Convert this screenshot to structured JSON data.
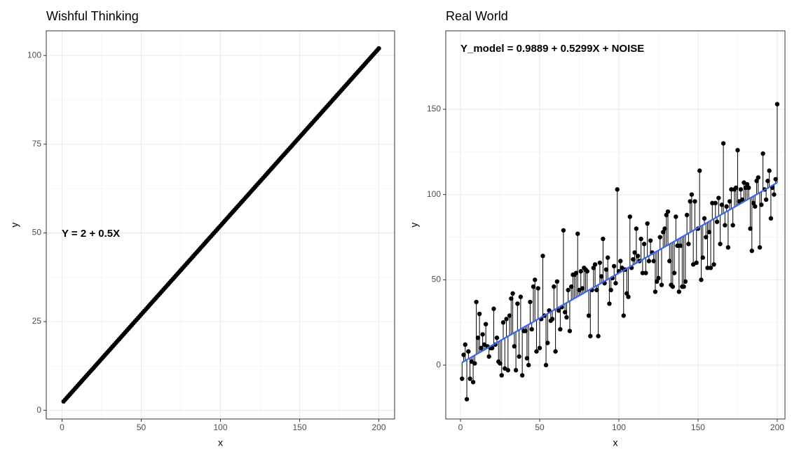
{
  "chart_data": [
    {
      "type": "scatter",
      "title": "Wishful Thinking",
      "x_label": "x",
      "y_label": "y",
      "annotation": "Y = 2 + 0.5X",
      "color": "#000000",
      "grid": true,
      "xlim": [
        -9.95,
        209.95
      ],
      "ylim": [
        -2.45,
        106.95
      ],
      "xticks": [
        0,
        50,
        100,
        150,
        200
      ],
      "yticks": [
        0,
        25,
        50,
        75,
        100
      ],
      "x": [
        1,
        2,
        3,
        4,
        5,
        6,
        7,
        8,
        9,
        10,
        11,
        12,
        13,
        14,
        15,
        16,
        17,
        18,
        19,
        20,
        21,
        22,
        23,
        24,
        25,
        26,
        27,
        28,
        29,
        30,
        31,
        32,
        33,
        34,
        35,
        36,
        37,
        38,
        39,
        40,
        41,
        42,
        43,
        44,
        45,
        46,
        47,
        48,
        49,
        50,
        51,
        52,
        53,
        54,
        55,
        56,
        57,
        58,
        59,
        60,
        61,
        62,
        63,
        64,
        65,
        66,
        67,
        68,
        69,
        70,
        71,
        72,
        73,
        74,
        75,
        76,
        77,
        78,
        79,
        80,
        81,
        82,
        83,
        84,
        85,
        86,
        87,
        88,
        89,
        90,
        91,
        92,
        93,
        94,
        95,
        96,
        97,
        98,
        99,
        100,
        101,
        102,
        103,
        104,
        105,
        106,
        107,
        108,
        109,
        110,
        111,
        112,
        113,
        114,
        115,
        116,
        117,
        118,
        119,
        120,
        121,
        122,
        123,
        124,
        125,
        126,
        127,
        128,
        129,
        130,
        131,
        132,
        133,
        134,
        135,
        136,
        137,
        138,
        139,
        140,
        141,
        142,
        143,
        144,
        145,
        146,
        147,
        148,
        149,
        150,
        151,
        152,
        153,
        154,
        155,
        156,
        157,
        158,
        159,
        160,
        161,
        162,
        163,
        164,
        165,
        166,
        167,
        168,
        169,
        170,
        171,
        172,
        173,
        174,
        175,
        176,
        177,
        178,
        179,
        180,
        181,
        182,
        183,
        184,
        185,
        186,
        187,
        188,
        189,
        190,
        191,
        192,
        193,
        194,
        195,
        196,
        197,
        198,
        199,
        200
      ],
      "values": [
        2.5,
        3,
        3.5,
        4,
        4.5,
        5,
        5.5,
        6,
        6.5,
        7,
        7.5,
        8,
        8.5,
        9,
        9.5,
        10,
        10.5,
        11,
        11.5,
        12,
        12.5,
        13,
        13.5,
        14,
        14.5,
        15,
        15.5,
        16,
        16.5,
        17,
        17.5,
        18,
        18.5,
        19,
        19.5,
        20,
        20.5,
        21,
        21.5,
        22,
        22.5,
        23,
        23.5,
        24,
        24.5,
        25,
        25.5,
        26,
        26.5,
        27,
        27.5,
        28,
        28.5,
        29,
        29.5,
        30,
        30.5,
        31,
        31.5,
        32,
        32.5,
        33,
        33.5,
        34,
        34.5,
        35,
        35.5,
        36,
        36.5,
        37,
        37.5,
        38,
        38.5,
        39,
        39.5,
        40,
        40.5,
        41,
        41.5,
        42,
        42.5,
        43,
        43.5,
        44,
        44.5,
        45,
        45.5,
        46,
        46.5,
        47,
        47.5,
        48,
        48.5,
        49,
        49.5,
        50,
        50.5,
        51,
        51.5,
        52,
        52.5,
        53,
        53.5,
        54,
        54.5,
        55,
        55.5,
        56,
        56.5,
        57,
        57.5,
        58,
        58.5,
        59,
        59.5,
        60,
        60.5,
        61,
        61.5,
        62,
        62.5,
        63,
        63.5,
        64,
        64.5,
        65,
        65.5,
        66,
        66.5,
        67,
        67.5,
        68,
        68.5,
        69,
        69.5,
        70,
        70.5,
        71,
        71.5,
        72,
        72.5,
        73,
        73.5,
        74,
        74.5,
        75,
        75.5,
        76,
        76.5,
        77,
        77.5,
        78,
        78.5,
        79,
        79.5,
        80,
        80.5,
        81,
        81.5,
        82,
        82.5,
        83,
        83.5,
        84,
        84.5,
        85,
        85.5,
        86,
        86.5,
        87,
        87.5,
        88,
        88.5,
        89,
        89.5,
        90,
        90.5,
        91,
        91.5,
        92,
        92.5,
        93,
        93.5,
        94,
        94.5,
        95,
        95.5,
        96,
        96.5,
        97,
        97.5,
        98,
        98.5,
        99,
        99.5,
        100,
        100.5,
        101,
        101.5,
        102
      ]
    },
    {
      "type": "scatter",
      "title": "Real World",
      "x_label": "x",
      "y_label": "y",
      "annotation": "Y_model = 0.9889 + 0.5299X + NOISE",
      "color": "#000000",
      "grid": true,
      "residuals": true,
      "xlim": [
        -9.3,
        204.9
      ],
      "ylim": [
        -31.6,
        196
      ],
      "xticks": [
        0,
        50,
        100,
        150,
        200
      ],
      "yticks": [
        0,
        50,
        100,
        150
      ],
      "fit": {
        "x": [
          1,
          200
        ],
        "values": [
          1.52,
          106.97
        ],
        "color": "#3366ff"
      },
      "x": [
        1,
        2,
        3,
        4,
        5,
        6,
        7,
        8,
        9,
        10,
        11,
        12,
        13,
        14,
        15,
        16,
        17,
        18,
        19,
        20,
        21,
        22,
        23,
        24,
        25,
        26,
        27,
        28,
        29,
        30,
        31,
        32,
        33,
        34,
        35,
        36,
        37,
        38,
        39,
        40,
        41,
        42,
        43,
        44,
        45,
        46,
        47,
        48,
        49,
        50,
        51,
        52,
        53,
        54,
        55,
        56,
        57,
        58,
        59,
        60,
        61,
        62,
        63,
        64,
        65,
        66,
        67,
        68,
        69,
        70,
        71,
        72,
        73,
        74,
        75,
        76,
        77,
        78,
        79,
        80,
        81,
        82,
        83,
        84,
        85,
        86,
        87,
        88,
        89,
        90,
        91,
        92,
        93,
        94,
        95,
        96,
        97,
        98,
        99,
        100,
        101,
        102,
        103,
        104,
        105,
        106,
        107,
        108,
        109,
        110,
        111,
        112,
        113,
        114,
        115,
        116,
        117,
        118,
        119,
        120,
        121,
        122,
        123,
        124,
        125,
        126,
        127,
        128,
        129,
        130,
        131,
        132,
        133,
        134,
        135,
        136,
        137,
        138,
        139,
        140,
        141,
        142,
        143,
        144,
        145,
        146,
        147,
        148,
        149,
        150,
        151,
        152,
        153,
        154,
        155,
        156,
        157,
        158,
        159,
        160,
        161,
        162,
        163,
        164,
        165,
        166,
        167,
        168,
        169,
        170,
        171,
        172,
        173,
        174,
        175,
        176,
        177,
        178,
        179,
        180,
        181,
        182,
        183,
        184,
        185,
        186,
        187,
        188,
        189,
        190,
        191,
        192,
        193,
        194,
        195,
        196,
        197,
        198,
        199,
        200
      ],
      "values": [
        -8,
        6,
        12,
        -20,
        8,
        -8,
        2,
        -10,
        1,
        37,
        16,
        30,
        10,
        18,
        12,
        24,
        11,
        5,
        10,
        10,
        33,
        12,
        16,
        2,
        1,
        -6,
        25,
        -2,
        27,
        -3,
        29,
        39,
        42,
        11,
        -3,
        36,
        5,
        40,
        -6,
        20,
        20,
        4,
        0,
        37,
        21,
        46,
        50,
        8,
        45,
        10,
        27,
        64,
        29,
        0,
        13,
        32,
        26,
        27,
        46,
        8,
        49,
        32,
        21,
        34,
        79,
        31,
        28,
        44,
        20,
        46,
        53,
        53,
        54,
        77,
        44,
        55,
        45,
        57,
        56,
        55,
        29,
        17,
        44,
        57,
        59,
        44,
        17,
        60,
        52,
        74,
        48,
        56,
        63,
        36,
        44,
        51,
        58,
        48,
        103,
        55,
        61,
        57,
        29,
        56,
        42,
        40,
        87,
        57,
        62,
        66,
        80,
        64,
        61,
        74,
        54,
        71,
        54,
        83,
        61,
        73,
        66,
        61,
        43,
        49,
        51,
        75,
        47,
        78,
        80,
        88,
        90,
        61,
        47,
        46,
        54,
        87,
        70,
        43,
        70,
        46,
        46,
        49,
        88,
        71,
        96,
        100,
        59,
        96,
        60,
        80,
        114,
        50,
        63,
        86,
        75,
        57,
        78,
        57,
        95,
        59,
        95,
        84,
        98,
        71,
        94,
        130,
        82,
        93,
        69,
        96,
        103,
        82,
        103,
        104,
        126,
        96,
        103,
        97,
        107,
        104,
        106,
        104,
        80,
        67,
        95,
        93,
        108,
        110,
        69,
        94,
        124,
        103,
        97,
        108,
        114,
        86,
        104,
        100,
        109,
        153
      ]
    }
  ]
}
